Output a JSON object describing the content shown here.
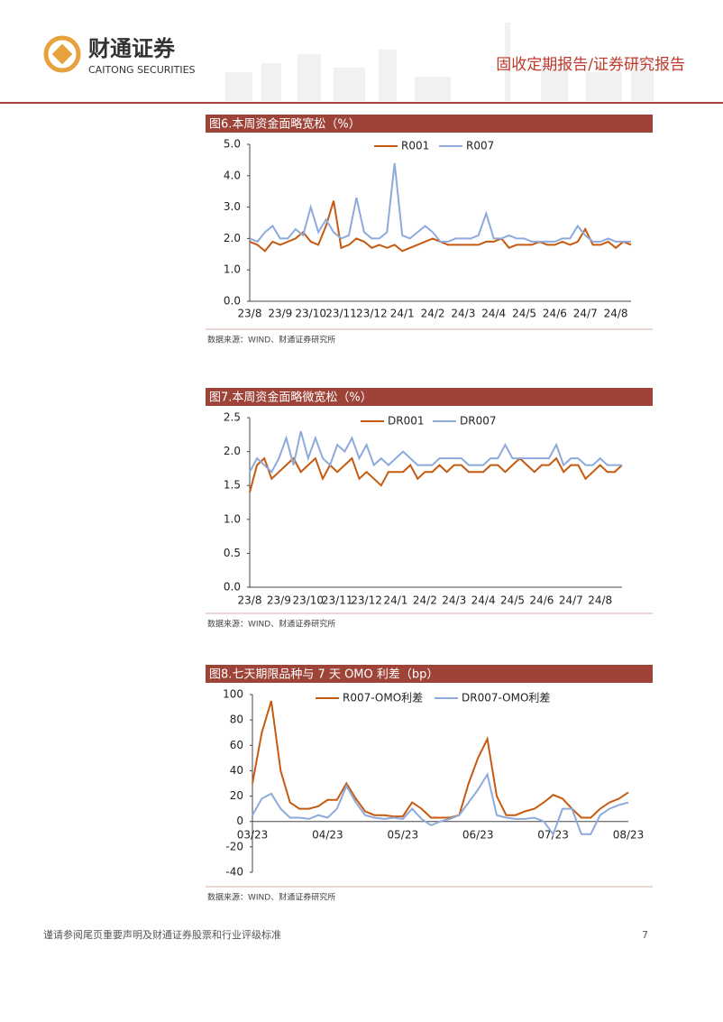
{
  "header": {
    "company_cn": "财通证券",
    "company_en": "CAITONG SECURITIES",
    "report_type": "固收定期报告/证券研究报告"
  },
  "chart_data": [
    {
      "type": "line",
      "title": "图6.本周资金面略宽松（%）",
      "source": "数据来源：WIND、财通证券研究所",
      "categories": [
        "23/8",
        null,
        null,
        null,
        "23/9",
        null,
        null,
        null,
        "23/10",
        null,
        null,
        null,
        "23/11",
        null,
        null,
        null,
        "23/12",
        null,
        null,
        null,
        "24/1",
        null,
        null,
        null,
        "24/2",
        null,
        null,
        null,
        "24/3",
        null,
        null,
        null,
        "24/4",
        null,
        null,
        null,
        "24/5",
        null,
        null,
        null,
        "24/6",
        null,
        null,
        null,
        "24/7",
        null,
        null,
        null,
        "24/8",
        null,
        null
      ],
      "series": [
        {
          "name": "R001",
          "color": "#c55a11",
          "values": [
            1.9,
            1.8,
            1.6,
            1.9,
            1.8,
            1.9,
            2.0,
            2.2,
            1.9,
            1.8,
            2.4,
            3.2,
            1.7,
            1.8,
            2.0,
            1.9,
            1.7,
            1.8,
            1.7,
            1.8,
            1.6,
            1.7,
            1.8,
            1.9,
            2.0,
            1.9,
            1.8,
            1.8,
            1.8,
            1.8,
            1.8,
            1.9,
            1.9,
            2.0,
            1.7,
            1.8,
            1.8,
            1.8,
            1.9,
            1.8,
            1.8,
            1.9,
            1.8,
            1.9,
            2.3,
            1.8,
            1.8,
            1.9,
            1.7,
            1.9,
            1.8
          ]
        },
        {
          "name": "R007",
          "color": "#8eaadb",
          "values": [
            2.0,
            1.9,
            2.2,
            2.4,
            2.0,
            2.0,
            2.3,
            2.1,
            3.0,
            2.2,
            2.6,
            2.2,
            2.0,
            2.1,
            3.3,
            2.2,
            2.0,
            2.0,
            2.2,
            4.4,
            2.1,
            2.0,
            2.2,
            2.4,
            2.2,
            1.9,
            1.9,
            2.0,
            2.0,
            2.0,
            2.1,
            2.8,
            2.0,
            2.0,
            2.1,
            2.0,
            2.0,
            1.9,
            1.9,
            1.9,
            1.9,
            2.0,
            2.0,
            2.4,
            2.1,
            1.9,
            1.9,
            2.0,
            1.9,
            1.9,
            1.9
          ]
        }
      ],
      "ylim": [
        0,
        5
      ],
      "yticks": [
        {
          "value": 0,
          "label": "0.0"
        },
        {
          "value": 1,
          "label": "1.0"
        },
        {
          "value": 2,
          "label": "2.0"
        },
        {
          "value": 3,
          "label": "3.0"
        },
        {
          "value": 4,
          "label": "4.0"
        },
        {
          "value": 5,
          "label": "5.0"
        }
      ]
    },
    {
      "type": "line",
      "title": "图7.本周资金面略微宽松（%）",
      "source": "数据来源：WIND、财通证券研究所",
      "categories": [
        "23/8",
        null,
        null,
        null,
        "23/9",
        null,
        null,
        null,
        "23/10",
        null,
        null,
        null,
        "23/11",
        null,
        null,
        null,
        "23/12",
        null,
        null,
        null,
        "24/1",
        null,
        null,
        null,
        "24/2",
        null,
        null,
        null,
        "24/3",
        null,
        null,
        null,
        "24/4",
        null,
        null,
        null,
        "24/5",
        null,
        null,
        null,
        "24/6",
        null,
        null,
        null,
        "24/7",
        null,
        null,
        null,
        "24/8",
        null,
        null,
        null
      ],
      "series": [
        {
          "name": "DR001",
          "color": "#c55a11",
          "values": [
            1.4,
            1.8,
            1.9,
            1.6,
            1.7,
            1.8,
            1.9,
            1.7,
            1.8,
            1.9,
            1.6,
            1.8,
            1.7,
            1.8,
            1.9,
            1.6,
            1.7,
            1.6,
            1.5,
            1.7,
            1.7,
            1.7,
            1.8,
            1.6,
            1.7,
            1.7,
            1.8,
            1.7,
            1.8,
            1.8,
            1.7,
            1.7,
            1.7,
            1.8,
            1.8,
            1.7,
            1.8,
            1.9,
            1.8,
            1.7,
            1.8,
            1.8,
            1.9,
            1.7,
            1.8,
            1.8,
            1.6,
            1.7,
            1.8,
            1.7,
            1.7,
            1.8
          ]
        },
        {
          "name": "DR007",
          "color": "#8eaadb",
          "values": [
            1.7,
            1.9,
            1.8,
            1.7,
            1.9,
            2.2,
            1.8,
            2.3,
            1.9,
            2.2,
            1.9,
            1.8,
            2.1,
            2.0,
            2.2,
            1.9,
            2.1,
            1.8,
            1.9,
            1.8,
            1.9,
            2.0,
            1.9,
            1.8,
            1.8,
            1.8,
            1.9,
            1.9,
            1.9,
            1.9,
            1.8,
            1.8,
            1.8,
            1.9,
            1.9,
            2.1,
            1.9,
            1.9,
            1.9,
            1.9,
            1.9,
            1.9,
            2.1,
            1.8,
            1.9,
            1.9,
            1.8,
            1.8,
            1.9,
            1.8,
            1.8,
            1.8
          ]
        }
      ],
      "ylim": [
        0,
        2.5
      ],
      "yticks": [
        {
          "value": 0,
          "label": "0.0"
        },
        0.5,
        {
          "value": 1,
          "label": "1.0"
        },
        1.5,
        {
          "value": 2,
          "label": "2.0"
        },
        2.5
      ]
    },
    {
      "type": "line",
      "title": "图8.七天期限品种与 7 天 OMO 利差（bp）",
      "source": "数据来源：WIND、财通证券研究所",
      "categories": [
        "03/23",
        null,
        null,
        null,
        null,
        null,
        null,
        null,
        "04/23",
        null,
        null,
        null,
        null,
        null,
        null,
        null,
        "05/23",
        null,
        null,
        null,
        null,
        null,
        null,
        null,
        "06/23",
        null,
        null,
        null,
        null,
        null,
        null,
        null,
        "07/23",
        null,
        null,
        null,
        null,
        null,
        null,
        null,
        "08/23"
      ],
      "series": [
        {
          "name": "R007-OMO利差",
          "color": "#c55a11",
          "values": [
            30,
            70,
            95,
            40,
            15,
            10,
            10,
            12,
            17,
            17,
            30,
            18,
            8,
            5,
            5,
            4,
            4,
            15,
            10,
            3,
            3,
            3,
            5,
            30,
            50,
            65,
            20,
            5,
            5,
            8,
            10,
            15,
            21,
            18,
            10,
            3,
            3,
            10,
            15,
            18,
            23
          ]
        },
        {
          "name": "DR007-OMO利差",
          "color": "#8eaadb",
          "values": [
            5,
            18,
            22,
            10,
            3,
            3,
            2,
            5,
            3,
            10,
            28,
            15,
            5,
            3,
            2,
            3,
            2,
            10,
            2,
            -3,
            0,
            2,
            5,
            15,
            25,
            37,
            5,
            3,
            2,
            2,
            3,
            0,
            -10,
            10,
            10,
            -10,
            -10,
            5,
            10,
            13,
            15
          ]
        }
      ],
      "ylim": [
        -40,
        100
      ],
      "yticks": [
        -40,
        -20,
        0,
        20,
        40,
        60,
        80,
        100
      ]
    }
  ],
  "footer": {
    "disclaimer": "谨请参阅尾页重要声明及财通证券股票和行业评级标准",
    "page": "7"
  }
}
